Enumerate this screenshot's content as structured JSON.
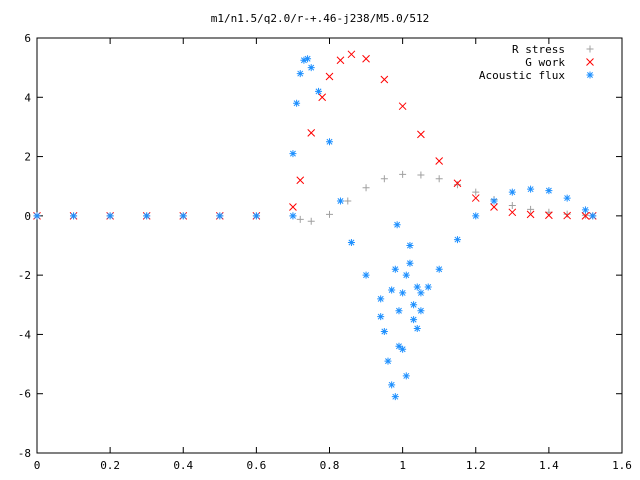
{
  "chart_data": {
    "type": "scatter",
    "title": "m1/n1.5/q2.0/r-+.46-j238/M5.0/512",
    "xlabel": "",
    "ylabel": "",
    "xlim": [
      0,
      1.6
    ],
    "ylim": [
      -8,
      6
    ],
    "xticks": [
      "0",
      "0.2",
      "0.4",
      "0.6",
      "0.8",
      "1",
      "1.2",
      "1.4",
      "1.6"
    ],
    "yticks": [
      "-8",
      "-6",
      "-4",
      "-2",
      "0",
      "2",
      "4",
      "6"
    ],
    "grid": false,
    "legend_position": "top-right",
    "series": [
      {
        "name": "R stress",
        "marker": "+",
        "color": "#a0a0a0",
        "x": [
          0.0,
          0.1,
          0.2,
          0.3,
          0.4,
          0.5,
          0.6,
          0.7,
          0.72,
          0.75,
          0.8,
          0.85,
          0.9,
          0.95,
          1.0,
          1.05,
          1.1,
          1.15,
          1.2,
          1.25,
          1.3,
          1.35,
          1.4,
          1.45,
          1.5,
          1.52
        ],
        "y": [
          0,
          0,
          0,
          0,
          0,
          0,
          0,
          0,
          -0.12,
          -0.18,
          0.05,
          0.5,
          0.95,
          1.25,
          1.4,
          1.38,
          1.25,
          1.05,
          0.8,
          0.55,
          0.35,
          0.22,
          0.12,
          0.06,
          0.02,
          0
        ]
      },
      {
        "name": "G work",
        "marker": "x",
        "color": "#ff0000",
        "x": [
          0.0,
          0.1,
          0.2,
          0.3,
          0.4,
          0.5,
          0.6,
          0.7,
          0.72,
          0.75,
          0.78,
          0.8,
          0.83,
          0.86,
          0.9,
          0.95,
          1.0,
          1.05,
          1.1,
          1.15,
          1.2,
          1.25,
          1.3,
          1.35,
          1.4,
          1.45,
          1.5,
          1.52
        ],
        "y": [
          0,
          0,
          0,
          0,
          0,
          0,
          0,
          0.3,
          1.2,
          2.8,
          4.0,
          4.7,
          5.25,
          5.45,
          5.3,
          4.6,
          3.7,
          2.75,
          1.85,
          1.1,
          0.6,
          0.3,
          0.12,
          0.05,
          0.02,
          0.01,
          0,
          0
        ]
      },
      {
        "name": "Acoustic flux",
        "marker": "*",
        "color": "#1e90ff",
        "x": [
          0.0,
          0.1,
          0.2,
          0.3,
          0.4,
          0.5,
          0.6,
          0.7,
          0.7,
          0.71,
          0.72,
          0.73,
          0.74,
          0.75,
          0.77,
          0.8,
          0.83,
          0.86,
          0.9,
          0.94,
          0.97,
          0.98,
          0.99,
          1.0,
          1.01,
          1.02,
          1.03,
          1.04,
          1.05,
          1.07,
          1.1,
          1.15,
          1.2,
          1.25,
          1.3,
          1.35,
          1.4,
          1.45,
          1.5,
          1.52,
          0.94,
          0.95,
          0.96,
          0.97,
          0.98,
          0.985,
          0.99,
          1.0,
          1.01,
          1.02,
          1.03,
          1.04,
          1.05
        ],
        "y": [
          0,
          0,
          0,
          0,
          0,
          0,
          0,
          0,
          2.1,
          3.8,
          4.8,
          5.25,
          5.3,
          5.0,
          4.2,
          2.5,
          0.5,
          -0.9,
          -2.0,
          -2.8,
          -2.5,
          -1.8,
          -3.2,
          -2.6,
          -2.0,
          -1.6,
          -3.0,
          -2.4,
          -2.6,
          -2.4,
          -1.8,
          -0.8,
          0.0,
          0.5,
          0.8,
          0.9,
          0.85,
          0.6,
          0.2,
          0,
          -3.4,
          -3.9,
          -4.9,
          -5.7,
          -6.1,
          -0.3,
          -4.4,
          -4.5,
          -5.4,
          -1.0,
          -3.5,
          -3.8,
          -3.2
        ]
      }
    ]
  }
}
